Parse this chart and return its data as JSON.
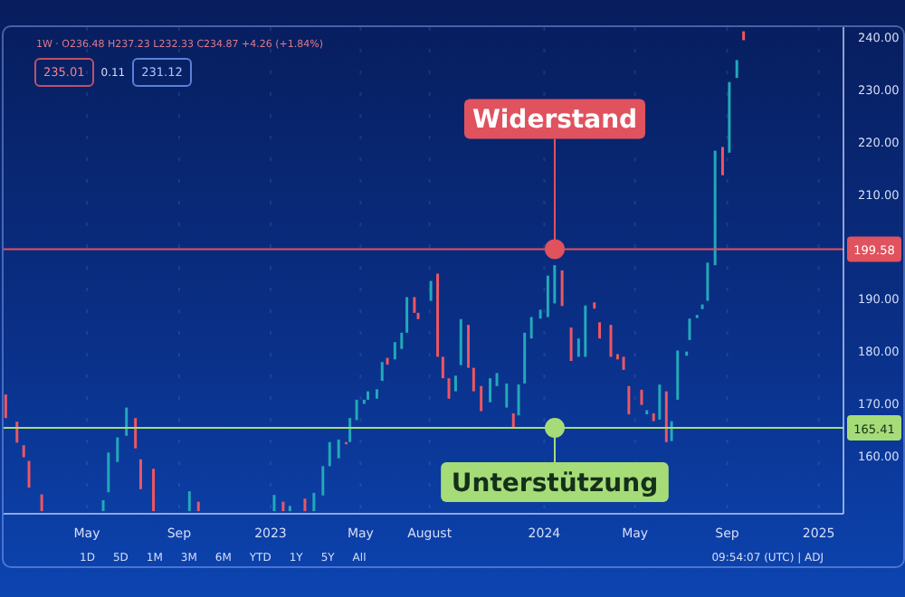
{
  "chart_data": {
    "type": "candlestick",
    "subtitle": "1W · O236.48 H237.23 L232.33 C234.87 +4.26 (+1.84%)",
    "x": [
      "2022-01-13",
      "2022-01-28",
      "2022-02-06",
      "2022-02-13",
      "2022-03-02",
      "2022-05-23",
      "2022-05-30",
      "2022-06-11",
      "2022-06-23",
      "2022-07-05",
      "2022-07-12",
      "2022-07-29",
      "2022-09-15",
      "2022-09-27",
      "2023-01-06",
      "2023-01-18",
      "2023-01-27",
      "2023-02-16",
      "2023-02-28",
      "2023-03-12",
      "2023-03-21",
      "2023-04-02",
      "2023-04-12",
      "2023-04-17",
      "2023-04-26",
      "2023-05-06",
      "2023-05-11",
      "2023-05-23",
      "2023-05-30",
      "2023-06-06",
      "2023-06-16",
      "2023-06-25",
      "2023-07-02",
      "2023-07-12",
      "2023-07-17",
      "2023-08-03",
      "2023-08-12",
      "2023-08-19",
      "2023-08-27",
      "2023-09-05",
      "2023-09-12",
      "2023-09-22",
      "2023-09-29",
      "2023-10-09",
      "2023-10-21",
      "2023-10-30",
      "2023-11-12",
      "2023-11-21",
      "2023-11-28",
      "2023-12-06",
      "2023-12-15",
      "2023-12-27",
      "2024-01-06",
      "2024-01-15",
      "2024-01-25",
      "2024-02-06",
      "2024-02-16",
      "2024-02-25",
      "2024-03-08",
      "2024-03-15",
      "2024-03-30",
      "2024-04-08",
      "2024-04-16",
      "2024-04-23",
      "2024-05-10",
      "2024-05-17",
      "2024-05-26",
      "2024-06-03",
      "2024-06-12",
      "2024-06-19",
      "2024-06-27",
      "2024-07-09",
      "2024-07-13",
      "2024-07-23",
      "2024-07-30",
      "2024-08-06",
      "2024-08-16",
      "2024-08-26",
      "2024-09-04",
      "2024-09-14",
      "2024-09-23"
    ],
    "ohlc": [
      [
        171.8,
        171.8,
        167.3,
        167.3
      ],
      [
        166.6,
        166.6,
        162.6,
        162.6
      ],
      [
        162.1,
        162.1,
        159.8,
        159.8
      ],
      [
        159.1,
        159.1,
        154.0,
        154.0
      ],
      [
        152.7,
        152.7,
        149.5,
        149.5
      ],
      [
        149.5,
        151.6,
        149.5,
        151.6
      ],
      [
        153.1,
        160.7,
        153.1,
        160.7
      ],
      [
        158.9,
        163.6,
        158.9,
        163.6
      ],
      [
        163.9,
        169.3,
        163.9,
        169.3
      ],
      [
        167.3,
        167.3,
        161.5,
        161.5
      ],
      [
        159.4,
        159.4,
        153.7,
        153.7
      ],
      [
        157.6,
        157.6,
        149.5,
        149.5
      ],
      [
        149.5,
        153.3,
        149.5,
        153.3
      ],
      [
        151.3,
        151.3,
        149.5,
        149.5
      ],
      [
        149.5,
        152.6,
        149.5,
        152.6
      ],
      [
        151.3,
        151.3,
        149.5,
        149.5
      ],
      [
        149.5,
        150.5,
        149.5,
        150.5
      ],
      [
        151.9,
        151.9,
        149.5,
        149.5
      ],
      [
        149.5,
        153.0,
        149.5,
        153.0
      ],
      [
        152.5,
        158.1,
        152.5,
        158.1
      ],
      [
        158.1,
        162.7,
        158.1,
        162.7
      ],
      [
        159.6,
        163.2,
        159.6,
        163.2
      ],
      [
        162.7,
        162.7,
        162.3,
        162.3
      ],
      [
        162.7,
        167.3,
        162.7,
        167.3
      ],
      [
        166.9,
        170.8,
        166.9,
        170.8
      ],
      [
        170.0,
        170.8,
        170.0,
        170.8
      ],
      [
        170.8,
        172.4,
        170.8,
        172.4
      ],
      [
        171.0,
        172.8,
        171.0,
        172.8
      ],
      [
        174.4,
        178.0,
        174.4,
        178.0
      ],
      [
        178.8,
        178.8,
        177.5,
        177.5
      ],
      [
        178.5,
        181.8,
        178.5,
        181.8
      ],
      [
        180.5,
        183.6,
        180.5,
        183.6
      ],
      [
        183.6,
        190.4,
        183.6,
        190.4
      ],
      [
        190.4,
        190.4,
        187.4,
        187.4
      ],
      [
        187.4,
        187.4,
        186.2,
        186.2
      ],
      [
        189.7,
        193.5,
        189.7,
        193.5
      ],
      [
        194.9,
        194.9,
        179.0,
        179.0
      ],
      [
        179.0,
        179.0,
        174.9,
        174.9
      ],
      [
        174.9,
        174.9,
        171.0,
        171.0
      ],
      [
        172.4,
        175.4,
        172.4,
        175.4
      ],
      [
        177.4,
        186.2,
        177.4,
        186.2
      ],
      [
        185.1,
        185.1,
        176.9,
        176.9
      ],
      [
        176.9,
        176.9,
        172.4,
        172.4
      ],
      [
        173.4,
        173.4,
        168.6,
        168.6
      ],
      [
        170.3,
        174.9,
        170.3,
        174.9
      ],
      [
        173.4,
        175.9,
        173.4,
        175.9
      ],
      [
        169.3,
        173.9,
        169.3,
        173.9
      ],
      [
        168.2,
        168.2,
        165.5,
        165.5
      ],
      [
        167.8,
        173.7,
        167.8,
        173.7
      ],
      [
        173.9,
        183.6,
        173.9,
        183.6
      ],
      [
        182.5,
        186.6,
        182.5,
        186.6
      ],
      [
        186.3,
        188.0,
        186.3,
        188.0
      ],
      [
        186.6,
        194.5,
        186.6,
        194.5
      ],
      [
        189.2,
        196.5,
        189.2,
        196.5
      ],
      [
        195.5,
        195.5,
        188.7,
        188.7
      ],
      [
        184.6,
        184.6,
        178.2,
        178.2
      ],
      [
        179.0,
        182.5,
        179.0,
        182.5
      ],
      [
        179.0,
        188.8,
        179.0,
        188.8
      ],
      [
        189.4,
        189.4,
        188.2,
        188.2
      ],
      [
        185.6,
        185.6,
        182.5,
        182.5
      ],
      [
        185.1,
        185.1,
        179.0,
        179.0
      ],
      [
        179.5,
        179.5,
        178.5,
        178.5
      ],
      [
        179.0,
        179.0,
        176.5,
        176.5
      ],
      [
        173.4,
        173.4,
        168.0,
        168.0
      ],
      [
        172.7,
        172.7,
        169.8,
        169.8
      ],
      [
        168.0,
        168.8,
        168.0,
        168.8
      ],
      [
        168.2,
        168.2,
        166.7,
        166.7
      ],
      [
        167.0,
        173.7,
        167.0,
        173.7
      ],
      [
        172.4,
        172.4,
        162.7,
        162.7
      ],
      [
        162.9,
        166.7,
        162.9,
        166.7
      ],
      [
        170.8,
        180.2,
        170.8,
        180.2
      ],
      [
        179.2,
        180.0,
        179.2,
        180.0
      ],
      [
        182.2,
        186.3,
        182.2,
        186.3
      ],
      [
        186.4,
        187.0,
        186.4,
        187.0
      ],
      [
        188.1,
        189.0,
        188.1,
        189.0
      ],
      [
        189.7,
        197.0,
        189.7,
        197.0
      ],
      [
        196.5,
        218.4,
        196.5,
        218.4
      ],
      [
        219.1,
        219.1,
        213.7,
        213.7
      ],
      [
        218.0,
        231.5,
        218.0,
        231.5
      ],
      [
        232.3,
        235.7,
        232.3,
        235.7
      ],
      [
        241.2,
        241.2,
        239.5,
        239.5
      ]
    ],
    "colors": [
      "#ef5661",
      "#ef5661",
      "#ef5661",
      "#ef5661",
      "#ef5661",
      "#22a9b9",
      "#22a9b9",
      "#22a9b9",
      "#22a9b9",
      "#ef5661",
      "#ef5661",
      "#ef5661",
      "#22a9b9",
      "#ef5661",
      "#22a9b9",
      "#ef5661",
      "#22a9b9",
      "#ef5661",
      "#22a9b9",
      "#22a9b9",
      "#22a9b9",
      "#22a9b9",
      "#ef5661",
      "#22a9b9",
      "#22a9b9",
      "#22a9b9",
      "#22a9b9",
      "#22a9b9",
      "#22a9b9",
      "#ef5661",
      "#22a9b9",
      "#22a9b9",
      "#22a9b9",
      "#ef5661",
      "#ef5661",
      "#22a9b9",
      "#ef5661",
      "#ef5661",
      "#ef5661",
      "#22a9b9",
      "#22a9b9",
      "#ef5661",
      "#ef5661",
      "#ef5661",
      "#22a9b9",
      "#22a9b9",
      "#22a9b9",
      "#ef5661",
      "#22a9b9",
      "#22a9b9",
      "#22a9b9",
      "#22a9b9",
      "#22a9b9",
      "#22a9b9",
      "#ef5661",
      "#ef5661",
      "#22a9b9",
      "#22a9b9",
      "#ef5661",
      "#ef5661",
      "#ef5661",
      "#ef5661",
      "#ef5661",
      "#ef5661",
      "#ef5661",
      "#22a9b9",
      "#ef5661",
      "#22a9b9",
      "#ef5661",
      "#22a9b9",
      "#22a9b9",
      "#22a9b9",
      "#22a9b9",
      "#22a9b9",
      "#22a9b9",
      "#22a9b9",
      "#22a9b9",
      "#ef5661",
      "#22a9b9",
      "#22a9b9",
      "#ef5661"
    ],
    "xlim": [
      "2022-01-10",
      "2025-02-03"
    ],
    "xticks": [
      {
        "value": "2022-05-01",
        "label": "May"
      },
      {
        "value": "2022-09-01",
        "label": "Sep"
      },
      {
        "value": "2023-01-01",
        "label": "2023"
      },
      {
        "value": "2023-05-01",
        "label": "May"
      },
      {
        "value": "2023-08-01",
        "label": "August"
      },
      {
        "value": "2024-01-01",
        "label": "2024"
      },
      {
        "value": "2024-05-01",
        "label": "May"
      },
      {
        "value": "2024-09-01",
        "label": "Sep"
      },
      {
        "value": "2025-01-01",
        "label": "2025"
      }
    ],
    "ylim": [
      149,
      242
    ],
    "yticks": [
      {
        "value": 160,
        "label": "160.00"
      },
      {
        "value": 170,
        "label": "170.00"
      },
      {
        "value": 180,
        "label": "180.00"
      },
      {
        "value": 190,
        "label": "190.00"
      },
      {
        "value": 210,
        "label": "210.00"
      },
      {
        "value": 220,
        "label": "220.00"
      },
      {
        "value": 230,
        "label": "230.00"
      },
      {
        "value": 240,
        "label": "240.00"
      }
    ],
    "grid": true,
    "ref_lines": [
      {
        "axis": "y",
        "value": 199.58,
        "label": "199.58",
        "color": "#e0525e"
      },
      {
        "axis": "y",
        "value": 165.41,
        "label": "165.41",
        "color": "#a6dc78"
      }
    ],
    "annotations": [
      {
        "text": "Widerstand",
        "x": "2024-01-15",
        "y": 199.58
      },
      {
        "text": "Unterstützung",
        "x": "2024-01-15",
        "y": 165.41
      },
      "235.01",
      "0.11",
      "231.12",
      "1D",
      "5D",
      "1M",
      "3M",
      "6M",
      "YTD",
      "1Y",
      "5Y",
      "All",
      "09:54:07 (UTC) | ADJ"
    ]
  }
}
